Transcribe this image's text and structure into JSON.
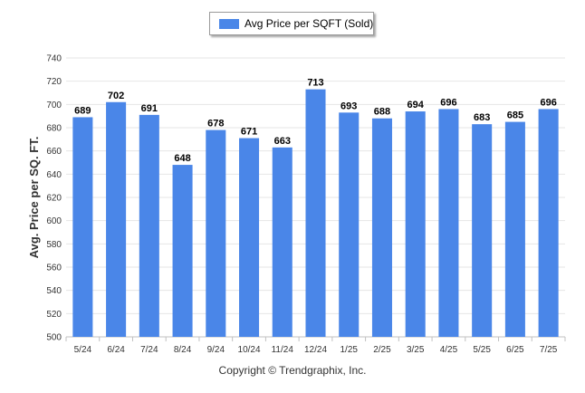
{
  "legend": {
    "label": "Avg Price per SQFT (Sold)"
  },
  "footer": {
    "copyright": "Copyright © Trendgraphix, Inc."
  },
  "colors": {
    "bar": "#4a86e8",
    "grid": "#e6e6e6",
    "axis": "#c0c0c0",
    "label": "#000000",
    "tick": "#333333"
  },
  "chart_data": {
    "type": "bar",
    "categories": [
      "5/24",
      "6/24",
      "7/24",
      "8/24",
      "9/24",
      "10/24",
      "11/24",
      "12/24",
      "1/25",
      "2/25",
      "3/25",
      "4/25",
      "5/25",
      "6/25",
      "7/25"
    ],
    "series": [
      {
        "name": "Avg Price per SQFT (Sold)",
        "values": [
          689,
          702,
          691,
          648,
          678,
          671,
          663,
          713,
          693,
          688,
          694,
          696,
          683,
          685,
          696
        ]
      }
    ],
    "ylabel": "Avg. Price per SQ. FT.",
    "ylim": [
      500,
      740
    ],
    "yticks": [
      500,
      520,
      540,
      560,
      580,
      600,
      620,
      640,
      660,
      680,
      700,
      720,
      740
    ],
    "grid": true,
    "legend_position": "top-center"
  }
}
